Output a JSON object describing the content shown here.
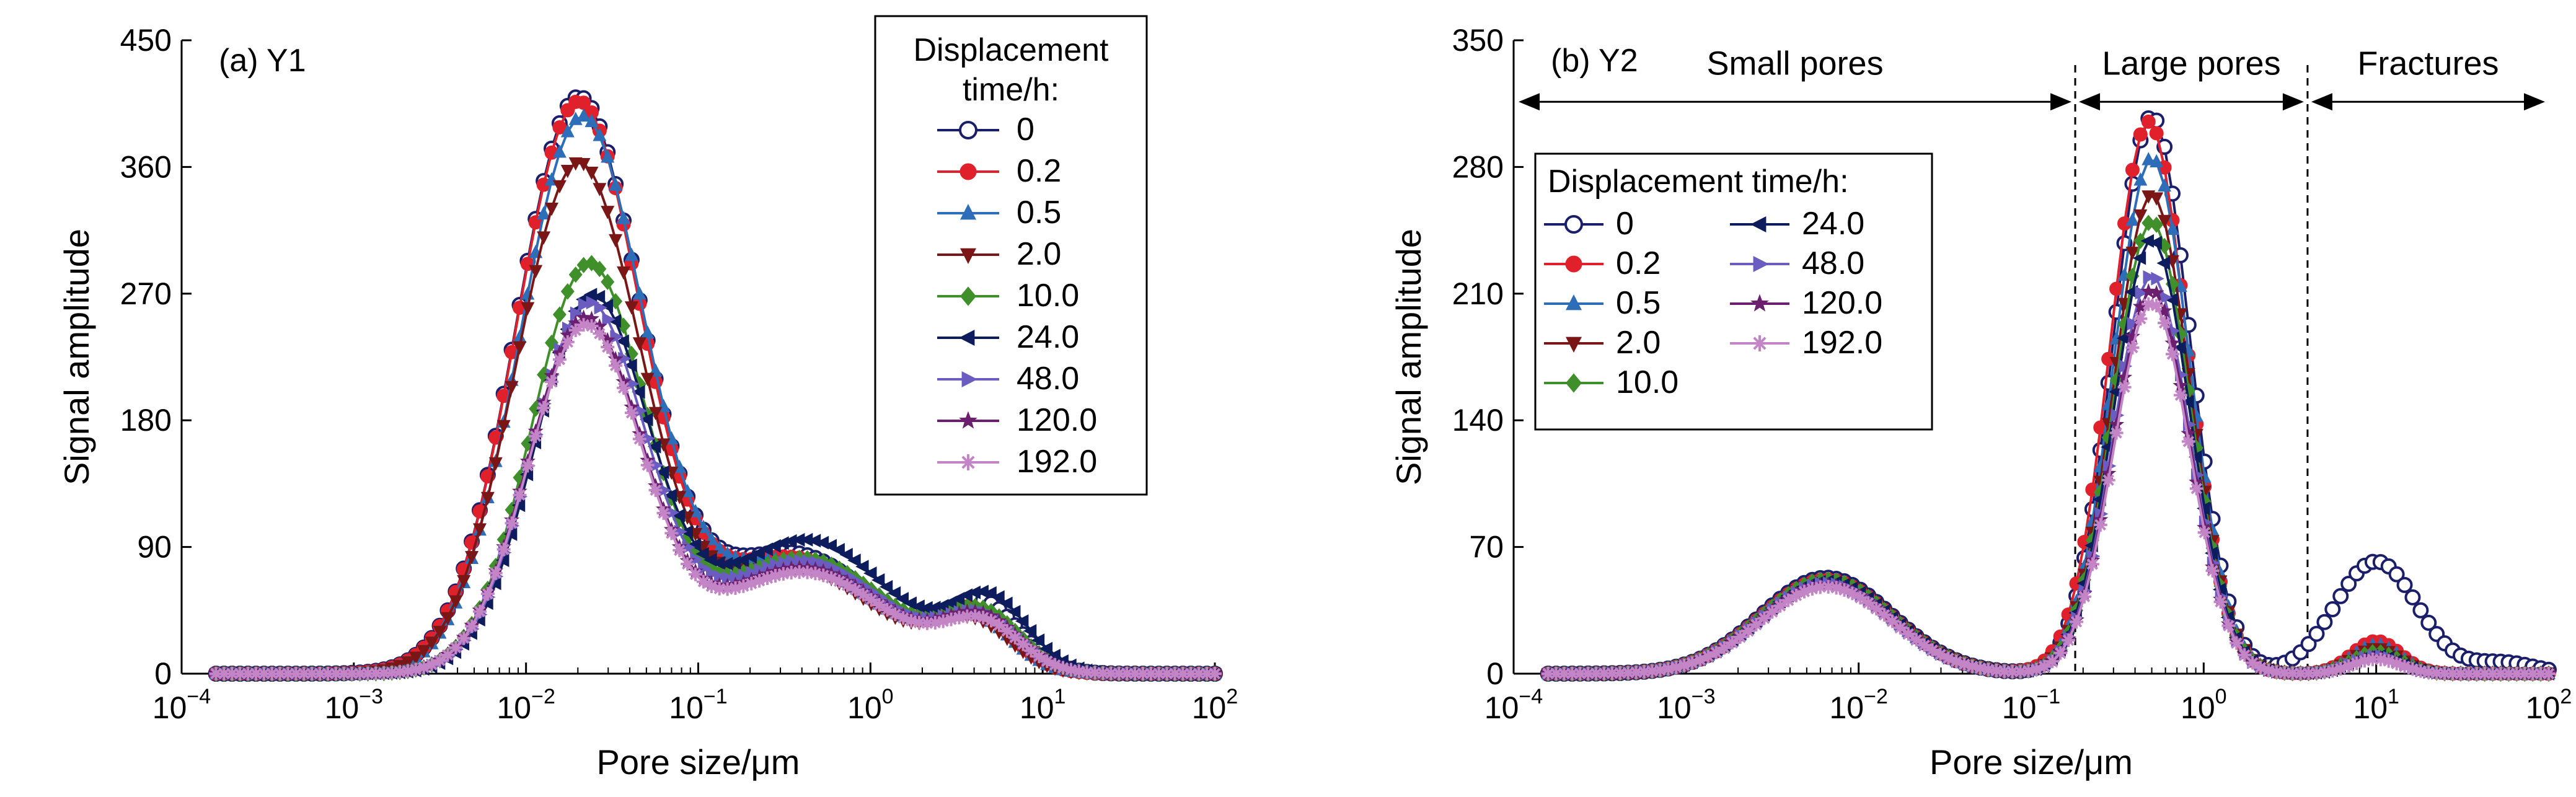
{
  "chart_data": [
    {
      "type": "line",
      "panel_label": "(a) Y1",
      "xlabel": "Pore size/μm",
      "ylabel": "Signal amplitude",
      "xscale": "log",
      "xlim": [
        0.0001,
        100
      ],
      "ylim": [
        0,
        450
      ],
      "yticks": [
        0,
        90,
        180,
        270,
        360,
        450
      ],
      "xticks": [
        {
          "base": "10",
          "exp": "−4"
        },
        {
          "base": "10",
          "exp": "−3"
        },
        {
          "base": "10",
          "exp": "−2"
        },
        {
          "base": "10",
          "exp": "−1"
        },
        {
          "base": "10",
          "exp": "0"
        },
        {
          "base": "10",
          "exp": "1"
        },
        {
          "base": "10",
          "exp": "2"
        }
      ],
      "legend": {
        "title_line1": "Displacement",
        "title_line2": "time/h:",
        "placement": "top-right",
        "columns": 1
      },
      "series": [
        {
          "name": "0",
          "color": "#1b1f6b",
          "marker": "circle-open",
          "peaks": [
            [
              0.02,
              406,
              0.36
            ],
            [
              0.35,
              85,
              0.5
            ],
            [
              4.5,
              45,
              0.22
            ]
          ]
        },
        {
          "name": "0.2",
          "color": "#e0202a",
          "marker": "circle",
          "peaks": [
            [
              0.02,
              403,
              0.36
            ],
            [
              0.35,
              82,
              0.5
            ],
            [
              4.0,
              38,
              0.22
            ]
          ]
        },
        {
          "name": "0.5",
          "color": "#2e6db8",
          "marker": "triangle-up",
          "peaks": [
            [
              0.021,
              392,
              0.36
            ],
            [
              0.35,
              80,
              0.5
            ],
            [
              4.0,
              35,
              0.22
            ]
          ]
        },
        {
          "name": "2.0",
          "color": "#7a1616",
          "marker": "triangle-down",
          "peaks": [
            [
              0.02,
              360,
              0.36
            ],
            [
              0.35,
              75,
              0.5
            ],
            [
              4.0,
              32,
              0.22
            ]
          ]
        },
        {
          "name": "10.0",
          "color": "#3f8f2a",
          "marker": "diamond",
          "peaks": [
            [
              0.023,
              288,
              0.33
            ],
            [
              0.4,
              82,
              0.5
            ],
            [
              4.5,
              38,
              0.22
            ]
          ]
        },
        {
          "name": "24.0",
          "color": "#0d1c5c",
          "marker": "triangle-left",
          "peaks": [
            [
              0.024,
              265,
              0.33
            ],
            [
              0.42,
              95,
              0.5
            ],
            [
              5.0,
              48,
              0.22
            ]
          ]
        },
        {
          "name": "48.0",
          "color": "#6a5cc0",
          "marker": "triangle-right",
          "peaks": [
            [
              0.023,
              260,
              0.33
            ],
            [
              0.4,
              80,
              0.5
            ],
            [
              4.5,
              35,
              0.22
            ]
          ]
        },
        {
          "name": "120.0",
          "color": "#6b1f6e",
          "marker": "star",
          "peaks": [
            [
              0.022,
              250,
              0.33
            ],
            [
              0.4,
              75,
              0.5
            ],
            [
              4.5,
              35,
              0.22
            ]
          ]
        },
        {
          "name": "192.0",
          "color": "#c485c7",
          "marker": "asterisk",
          "peaks": [
            [
              0.022,
              245,
              0.33
            ],
            [
              0.4,
              72,
              0.5
            ],
            [
              4.5,
              32,
              0.22
            ]
          ]
        }
      ]
    },
    {
      "type": "line",
      "panel_label": "(b) Y2",
      "xlabel": "Pore size/μm",
      "ylabel": "Signal amplitude",
      "xscale": "log",
      "xlim": [
        0.0001,
        100
      ],
      "ylim": [
        0,
        350
      ],
      "yticks": [
        0,
        70,
        140,
        210,
        280,
        350
      ],
      "xticks": [
        {
          "base": "10",
          "exp": "−4"
        },
        {
          "base": "10",
          "exp": "−3"
        },
        {
          "base": "10",
          "exp": "−2"
        },
        {
          "base": "10",
          "exp": "−1"
        },
        {
          "base": "10",
          "exp": "0"
        },
        {
          "base": "10",
          "exp": "1"
        },
        {
          "base": "10",
          "exp": "2"
        }
      ],
      "regions": [
        {
          "label": "Small pores",
          "from": 0.0001,
          "to": 0.18
        },
        {
          "label": "Large pores",
          "from": 0.18,
          "to": 4.0
        },
        {
          "label": "Fractures",
          "from": 4.0,
          "to": 100
        }
      ],
      "dividers": [
        0.18,
        4.0
      ],
      "legend": {
        "title": "Displacement time/h:",
        "placement": "upper-left-center",
        "columns": 2
      },
      "series": [
        {
          "name": "0",
          "color": "#1b1f6b",
          "marker": "circle-open",
          "peaks": [
            [
              0.0065,
              53,
              0.38
            ],
            [
              0.5,
              308,
              0.22
            ],
            [
              10,
              62,
              0.24
            ],
            [
              55,
              6,
              0.18
            ]
          ]
        },
        {
          "name": "0.2",
          "color": "#e0202a",
          "marker": "circle",
          "peaks": [
            [
              0.0065,
              52,
              0.38
            ],
            [
              0.48,
              305,
              0.22
            ],
            [
              10,
              18,
              0.14
            ]
          ]
        },
        {
          "name": "0.5",
          "color": "#2e6db8",
          "marker": "triangle-up",
          "peaks": [
            [
              0.0065,
              51,
              0.38
            ],
            [
              0.5,
              285,
              0.22
            ],
            [
              10,
              16,
              0.14
            ]
          ]
        },
        {
          "name": "2.0",
          "color": "#7a1616",
          "marker": "triangle-down",
          "peaks": [
            [
              0.0065,
              51,
              0.38
            ],
            [
              0.5,
              265,
              0.22
            ],
            [
              10,
              14,
              0.14
            ]
          ]
        },
        {
          "name": "10.0",
          "color": "#3f8f2a",
          "marker": "diamond",
          "peaks": [
            [
              0.0065,
              52,
              0.38
            ],
            [
              0.5,
              250,
              0.22
            ],
            [
              10,
              12,
              0.14
            ]
          ]
        },
        {
          "name": "24.0",
          "color": "#0d1c5c",
          "marker": "triangle-left",
          "peaks": [
            [
              0.0065,
              51,
              0.38
            ],
            [
              0.5,
              240,
              0.22
            ],
            [
              10,
              10,
              0.14
            ]
          ]
        },
        {
          "name": "48.0",
          "color": "#6a5cc0",
          "marker": "triangle-right",
          "peaks": [
            [
              0.0065,
              50,
              0.38
            ],
            [
              0.5,
              220,
              0.22
            ],
            [
              10,
              10,
              0.14
            ]
          ]
        },
        {
          "name": "120.0",
          "color": "#6b1f6e",
          "marker": "star",
          "peaks": [
            [
              0.0065,
              49,
              0.38
            ],
            [
              0.5,
              212,
              0.22
            ],
            [
              10,
              9,
              0.14
            ]
          ]
        },
        {
          "name": "192.0",
          "color": "#c485c7",
          "marker": "asterisk",
          "peaks": [
            [
              0.0065,
              48,
              0.38
            ],
            [
              0.5,
              205,
              0.22
            ],
            [
              10,
              8,
              0.14
            ]
          ]
        }
      ]
    }
  ]
}
